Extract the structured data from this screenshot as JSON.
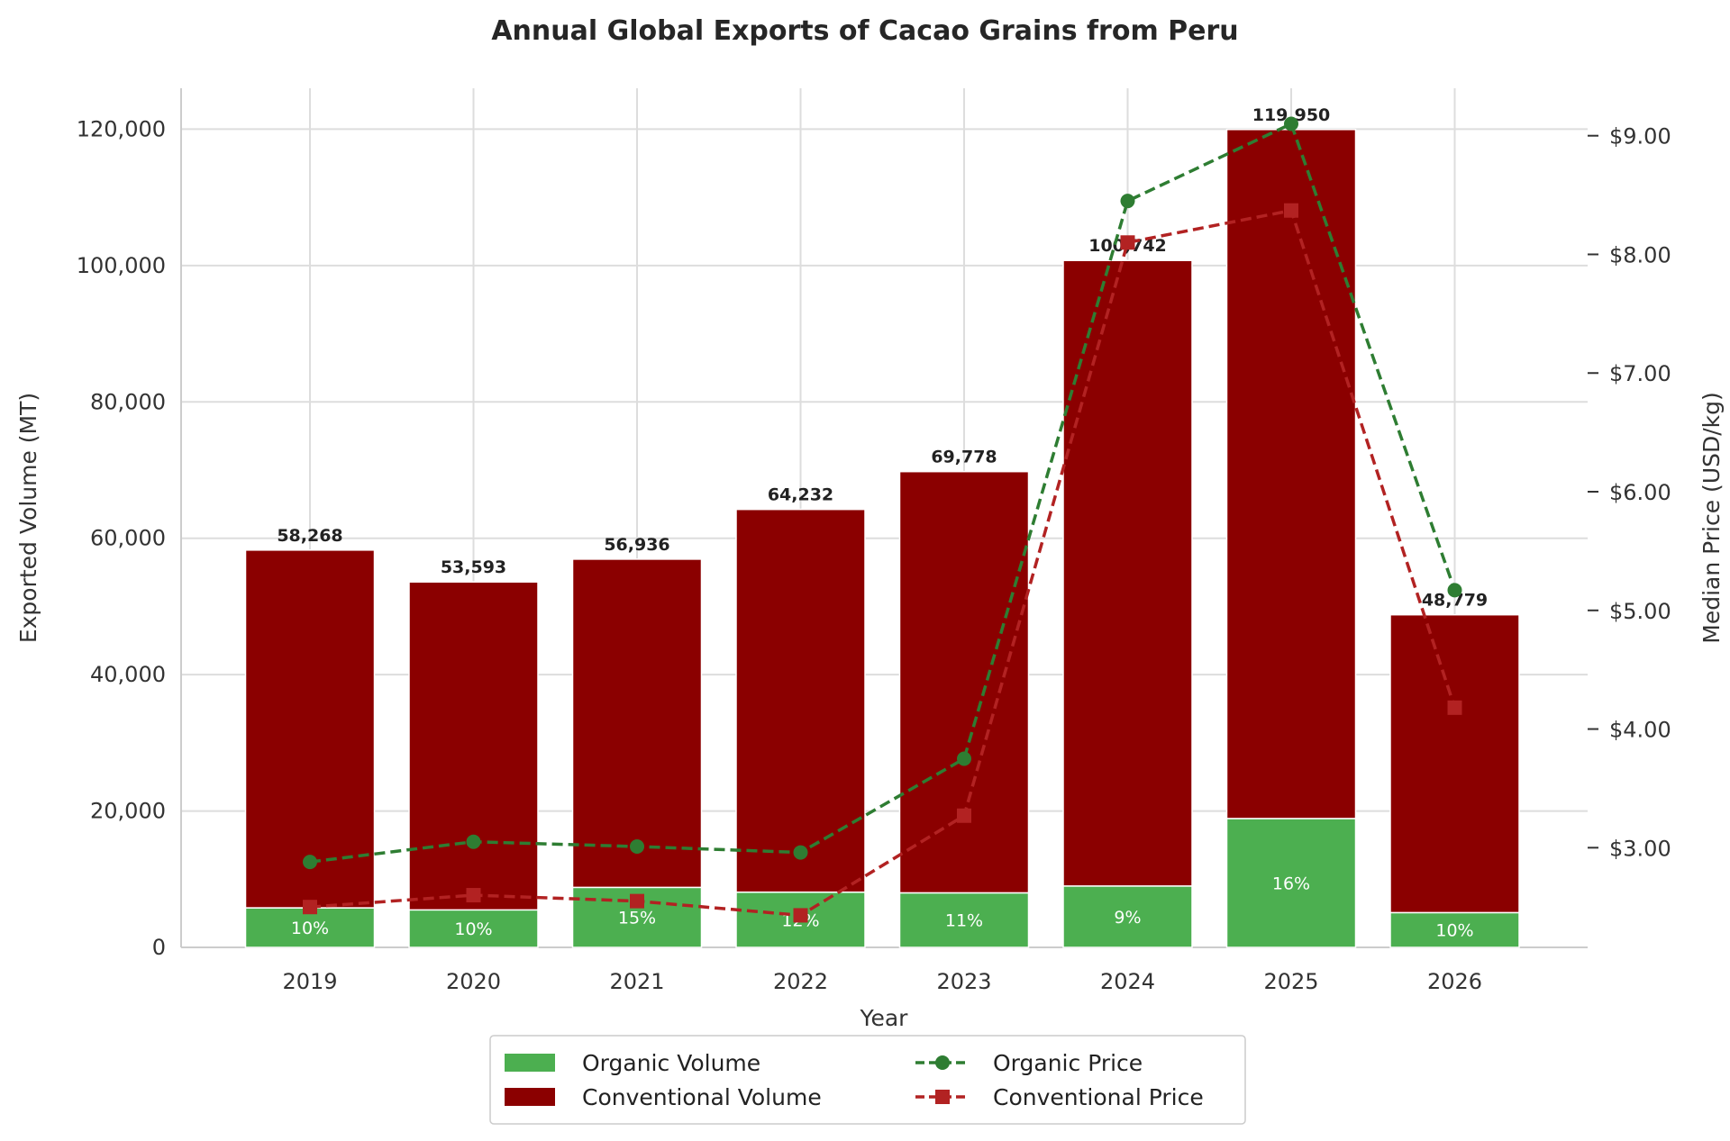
{
  "chart_data": {
    "type": "bar",
    "title": "Annual Global Exports of Cacao Grains from Peru",
    "xlabel": "Year",
    "ylabel": "Exported Volume (MT)",
    "y2label": "Median Price (USD/kg)",
    "categories": [
      "2019",
      "2020",
      "2021",
      "2022",
      "2023",
      "2024",
      "2025",
      "2026"
    ],
    "ylim": [
      0,
      126000
    ],
    "yticks": [
      0,
      20000,
      40000,
      60000,
      80000,
      100000,
      120000
    ],
    "ytick_labels": [
      "0",
      "20,000",
      "40,000",
      "60,000",
      "80,000",
      "100,000",
      "120,000"
    ],
    "y2lim": [
      2.16,
      9.4
    ],
    "y2ticks": [
      3,
      4,
      5,
      6,
      7,
      8,
      9
    ],
    "y2tick_labels": [
      "$3.00",
      "$4.00",
      "$5.00",
      "$6.00",
      "$7.00",
      "$8.00",
      "$9.00"
    ],
    "grid": true,
    "stacked": true,
    "series": [
      {
        "name": "Organic Volume",
        "kind": "bar",
        "color": "#4caf50",
        "values": [
          5800,
          5500,
          8800,
          8100,
          8000,
          9000,
          18900,
          5100
        ]
      },
      {
        "name": "Conventional Volume",
        "kind": "bar",
        "color": "#8b0000",
        "values": [
          52468,
          48093,
          48136,
          56132,
          61778,
          91742,
          101050,
          43679
        ]
      },
      {
        "name": "Organic Price",
        "kind": "line",
        "axis": "right",
        "color": "#2e7d32",
        "marker": "circle",
        "values": [
          2.88,
          3.05,
          3.01,
          2.96,
          3.75,
          8.45,
          9.1,
          5.17
        ]
      },
      {
        "name": "Conventional Price",
        "kind": "line",
        "axis": "right",
        "color": "#b22222",
        "marker": "square",
        "values": [
          2.5,
          2.6,
          2.55,
          2.43,
          3.27,
          8.1,
          8.37,
          4.18
        ]
      }
    ],
    "totals": [
      58268,
      53593,
      56936,
      64232,
      69778,
      100742,
      119950,
      48779
    ],
    "total_labels": [
      "58,268",
      "53,593",
      "56,936",
      "64,232",
      "69,778",
      "100,742",
      "119,950",
      "48,779"
    ],
    "organic_share_labels": [
      "10%",
      "10%",
      "15%",
      "12%",
      "11%",
      "9%",
      "16%",
      "10%"
    ],
    "legend": {
      "position": "bottom-center",
      "entries": [
        "Organic Volume",
        "Organic Price",
        "Conventional Volume",
        "Conventional Price"
      ]
    }
  }
}
